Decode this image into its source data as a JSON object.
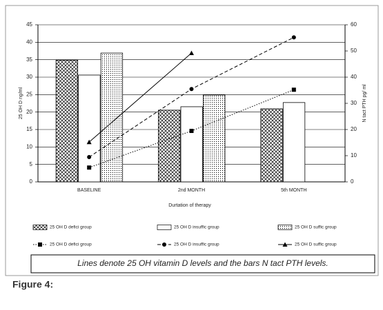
{
  "chart_data": {
    "type": "bar",
    "x_label": "Durtation of therapy",
    "y_label": "25 OH D ng/ml",
    "y2_label": "N tact PTH pg/ ml",
    "categories": [
      "BASELINE",
      "2nd MONTH",
      "5th MONTH"
    ],
    "ylim": [
      0,
      45
    ],
    "yticks": [
      0,
      5,
      10,
      15,
      20,
      25,
      30,
      35,
      40,
      45
    ],
    "y2lim": [
      0,
      60
    ],
    "y2ticks": [
      0,
      10,
      20,
      30,
      40,
      50,
      60
    ],
    "grid": true,
    "series": [
      {
        "name": "25 OH D defici group",
        "type": "bar",
        "axis": "y2",
        "color": "#000000",
        "pattern": "crosshatch",
        "values": [
          46.5,
          27.4,
          27.9
        ]
      },
      {
        "name": "25 OH D insuffic group",
        "type": "bar",
        "axis": "y2",
        "color": "#000000",
        "pattern": "none",
        "values": [
          40.8,
          28.7,
          30.3
        ]
      },
      {
        "name": "25 OH D suffic group",
        "type": "bar",
        "axis": "y2",
        "color": "#000000",
        "pattern": "dots",
        "values": [
          49.2,
          33.2,
          null
        ]
      },
      {
        "name": "25 OH D defici group",
        "type": "line",
        "axis": "y",
        "color": "#000000",
        "dash": "dotted",
        "marker": "square",
        "values": [
          4.1,
          14.6,
          26.4
        ]
      },
      {
        "name": "25 OH D insuffic group",
        "type": "line",
        "axis": "y",
        "color": "#000000",
        "dash": "dashed",
        "marker": "circle",
        "values": [
          7.1,
          26.6,
          41.4
        ]
      },
      {
        "name": "25 OH D suffic group",
        "type": "line",
        "axis": "y",
        "color": "#000000",
        "dash": "solid",
        "marker": "triangle",
        "values": [
          11.4,
          36.9,
          null
        ]
      }
    ]
  },
  "caption": "Lines denote 25 OH vitamin D levels and the bars N tact PTH levels.",
  "figure_label": "Figure 4:"
}
